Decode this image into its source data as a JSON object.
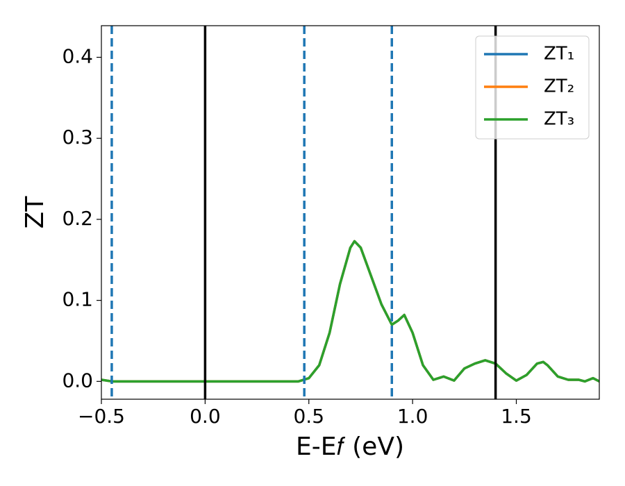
{
  "chart_data": {
    "type": "line",
    "xlabel": "E-E𝑓 (eV)",
    "ylabel": "ZT",
    "x": [
      -0.5,
      -0.45,
      -0.3,
      -0.1,
      0.1,
      0.3,
      0.45,
      0.5,
      0.55,
      0.6,
      0.65,
      0.7,
      0.72,
      0.75,
      0.8,
      0.85,
      0.9,
      0.93,
      0.96,
      1.0,
      1.05,
      1.1,
      1.15,
      1.2,
      1.25,
      1.3,
      1.35,
      1.4,
      1.45,
      1.5,
      1.55,
      1.6,
      1.63,
      1.65,
      1.7,
      1.75,
      1.8,
      1.83,
      1.87,
      1.9
    ],
    "series": [
      {
        "name": "ZT₁",
        "color": "#1f77b4",
        "values": [
          0.002,
          0.0,
          0.0,
          0.0,
          0.0,
          0.0,
          0.0,
          0.004,
          0.02,
          0.06,
          0.12,
          0.165,
          0.173,
          0.165,
          0.13,
          0.095,
          0.07,
          0.075,
          0.082,
          0.06,
          0.02,
          0.002,
          0.006,
          0.001,
          0.016,
          0.022,
          0.026,
          0.022,
          0.01,
          0.001,
          0.008,
          0.022,
          0.024,
          0.02,
          0.006,
          0.002,
          0.002,
          0.0,
          0.004,
          0.0
        ]
      },
      {
        "name": "ZT₂",
        "color": "#ff7f0e",
        "values": [
          0.002,
          0.0,
          0.0,
          0.0,
          0.0,
          0.0,
          0.0,
          0.004,
          0.02,
          0.06,
          0.12,
          0.165,
          0.173,
          0.165,
          0.13,
          0.095,
          0.07,
          0.075,
          0.082,
          0.06,
          0.02,
          0.002,
          0.006,
          0.001,
          0.016,
          0.022,
          0.026,
          0.022,
          0.01,
          0.001,
          0.008,
          0.022,
          0.024,
          0.02,
          0.006,
          0.002,
          0.002,
          0.0,
          0.004,
          0.0
        ]
      },
      {
        "name": "ZT₃",
        "color": "#2ca02c",
        "values": [
          0.002,
          0.0,
          0.0,
          0.0,
          0.0,
          0.0,
          0.0,
          0.004,
          0.02,
          0.06,
          0.12,
          0.165,
          0.173,
          0.165,
          0.13,
          0.095,
          0.07,
          0.075,
          0.082,
          0.06,
          0.02,
          0.002,
          0.006,
          0.001,
          0.016,
          0.022,
          0.026,
          0.022,
          0.01,
          0.001,
          0.008,
          0.022,
          0.024,
          0.02,
          0.006,
          0.002,
          0.002,
          0.0,
          0.004,
          0.0
        ]
      }
    ],
    "vlines": [
      {
        "x": 0,
        "color": "#000000",
        "style": "solid"
      },
      {
        "x": 1.4,
        "color": "#000000",
        "style": "solid"
      },
      {
        "x": -0.45,
        "color": "#1f77b4",
        "style": "dashed"
      },
      {
        "x": 0.478,
        "color": "#1f77b4",
        "style": "dashed"
      },
      {
        "x": 0.9,
        "color": "#1f77b4",
        "style": "dashed"
      }
    ],
    "xlim": [
      -0.5,
      1.9
    ],
    "ylim": [
      -0.022,
      0.439
    ],
    "xticks": [
      {
        "value": -0.5,
        "label": "−0.5"
      },
      {
        "value": 0,
        "label": "0.0"
      },
      0.5,
      {
        "value": 1,
        "label": "1.0"
      },
      1.5
    ],
    "yticks": [
      {
        "value": 0,
        "label": "0.0"
      },
      0.1,
      0.2,
      0.3,
      0.4
    ],
    "legend": "upper right"
  }
}
